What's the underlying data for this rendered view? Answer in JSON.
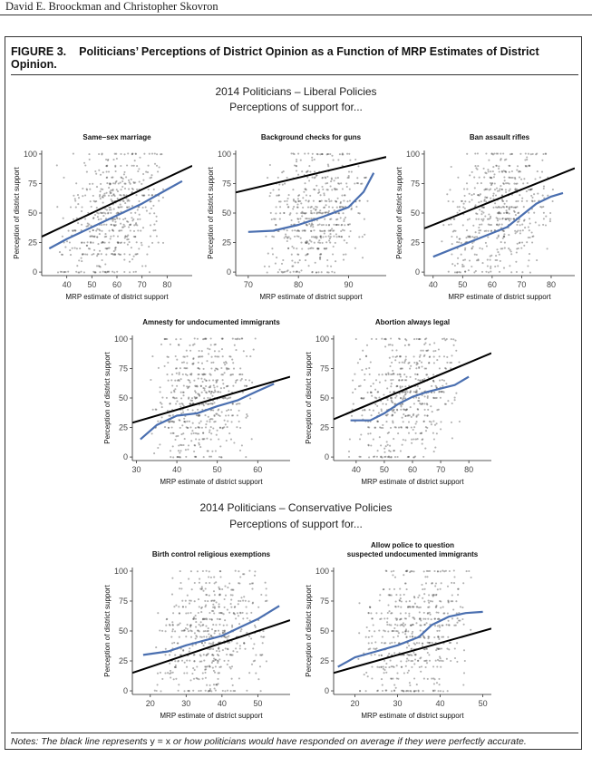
{
  "header": {
    "running_head": "David E. Broockman and Christopher Skovron"
  },
  "figure": {
    "label": "FIGURE 3.",
    "title": "Politicians’ Perceptions of District Opinion as a Function of MRP Estimates of District Opinion."
  },
  "sections": {
    "liberal_title": "2014 Politicians – Liberal Policies",
    "liberal_subtitle": "Perceptions of support for...",
    "conservative_title": "2014 Politicians – Conservative Policies",
    "conservative_subtitle": "Perceptions of support for..."
  },
  "notes": {
    "prefix": "Notes: The black line represents ",
    "equation": "y = x",
    "suffix": " or how politicians would have responded on average if they were perfectly accurate."
  },
  "colors": {
    "points": "#444444",
    "smooth": "#4a6fb0",
    "identity": "#000000"
  },
  "chart_data": [
    {
      "type": "scatter",
      "title": "Same–sex marriage",
      "xlabel": "MRP estimate of district support",
      "ylabel": "Perception of district support",
      "xlim": [
        30,
        90
      ],
      "ylim": [
        -3,
        103
      ],
      "xticks": [
        40,
        50,
        60,
        70,
        80
      ],
      "yticks": [
        0,
        25,
        50,
        75,
        100
      ],
      "x_range": [
        35,
        80
      ],
      "center": 60,
      "slope": 0.7,
      "smooth": {
        "x": [
          33,
          40,
          50,
          60,
          70,
          80,
          86
        ],
        "y": [
          20,
          28,
          38,
          48,
          58,
          70,
          77
        ]
      },
      "identity_line": "y = x",
      "grid": false
    },
    {
      "type": "scatter",
      "title": "Background checks for guns",
      "xlabel": "MRP estimate of district support",
      "ylabel": "Perception of district support",
      "xlim": [
        67.5,
        97.5
      ],
      "ylim": [
        -3,
        103
      ],
      "xticks": [
        70,
        80,
        90
      ],
      "yticks": [
        0,
        25,
        50,
        75,
        100
      ],
      "x_range": [
        72,
        95
      ],
      "center": 84,
      "slope": 1.0,
      "smooth": {
        "x": [
          70,
          75,
          80,
          85,
          90,
          93,
          95
        ],
        "y": [
          34,
          35,
          40,
          47,
          55,
          68,
          84
        ]
      },
      "identity_line": "y = x",
      "grid": false
    },
    {
      "type": "scatter",
      "title": "Ban assault rifles",
      "xlabel": "MRP estimate of district support",
      "ylabel": "Perception of district support",
      "xlim": [
        37,
        88
      ],
      "ylim": [
        -3,
        103
      ],
      "xticks": [
        40,
        50,
        60,
        70,
        80
      ],
      "yticks": [
        0,
        25,
        50,
        75,
        100
      ],
      "x_range": [
        42,
        82
      ],
      "center": 60,
      "slope": 0.9,
      "smooth": {
        "x": [
          40,
          50,
          55,
          60,
          65,
          70,
          75,
          80,
          84
        ],
        "y": [
          13,
          23,
          28,
          33,
          38,
          48,
          58,
          64,
          67
        ]
      },
      "identity_line": "y = x",
      "grid": false
    },
    {
      "type": "scatter",
      "title": "Amnesty for undocumented immigrants",
      "xlabel": "MRP estimate of district support",
      "ylabel": "Perception of district support",
      "xlim": [
        29,
        68
      ],
      "ylim": [
        -3,
        103
      ],
      "xticks": [
        30,
        40,
        50,
        60
      ],
      "yticks": [
        0,
        25,
        50,
        75,
        100
      ],
      "x_range": [
        33,
        60
      ],
      "center": 45,
      "slope": 0.9,
      "smooth": {
        "x": [
          31,
          35,
          40,
          45,
          50,
          55,
          60,
          64
        ],
        "y": [
          15,
          27,
          35,
          37,
          43,
          48,
          56,
          62
        ]
      },
      "identity_line": "y = x",
      "grid": false
    },
    {
      "type": "scatter",
      "title": "Abortion always legal",
      "xlabel": "MRP estimate of district support",
      "ylabel": "Perception of district support",
      "xlim": [
        32,
        88
      ],
      "ylim": [
        -3,
        103
      ],
      "xticks": [
        40,
        50,
        60,
        70,
        80
      ],
      "yticks": [
        0,
        25,
        50,
        75,
        100
      ],
      "x_range": [
        36,
        78
      ],
      "center": 56,
      "slope": 0.8,
      "smooth": {
        "x": [
          38,
          45,
          50,
          55,
          60,
          65,
          70,
          75,
          80
        ],
        "y": [
          31,
          31,
          37,
          45,
          51,
          55,
          58,
          61,
          68
        ]
      },
      "identity_line": "y = x",
      "grid": false
    },
    {
      "type": "scatter",
      "title": "Birth control religious exemptions",
      "xlabel": "MRP estimate of district support",
      "ylabel": "Perception of district support",
      "xlim": [
        15,
        59
      ],
      "ylim": [
        -3,
        103
      ],
      "xticks": [
        20,
        30,
        40,
        50
      ],
      "yticks": [
        0,
        25,
        50,
        75,
        100
      ],
      "x_range": [
        20,
        54
      ],
      "center": 38,
      "slope": 0.9,
      "smooth": {
        "x": [
          18,
          25,
          30,
          35,
          40,
          45,
          50,
          56
        ],
        "y": [
          30,
          33,
          38,
          42,
          46,
          53,
          60,
          71
        ]
      },
      "identity_line": "y = x",
      "grid": false
    },
    {
      "type": "scatter",
      "title": "Allow police to question suspected undocumented immigrants",
      "title_lines": [
        "Allow police to question",
        "suspected undocumented immigrants"
      ],
      "xlabel": "MRP estimate of district support",
      "ylabel": "Perception of district support",
      "xlim": [
        15,
        52
      ],
      "ylim": [
        -3,
        103
      ],
      "xticks": [
        20,
        30,
        40,
        50
      ],
      "yticks": [
        0,
        25,
        50,
        75,
        100
      ],
      "x_range": [
        20,
        48
      ],
      "center": 36,
      "slope": 1.0,
      "smooth": {
        "x": [
          16,
          20,
          25,
          30,
          35,
          38,
          42,
          46,
          50
        ],
        "y": [
          20,
          28,
          33,
          38,
          45,
          55,
          62,
          65,
          66
        ]
      },
      "identity_line": "y = x",
      "grid": false
    }
  ]
}
